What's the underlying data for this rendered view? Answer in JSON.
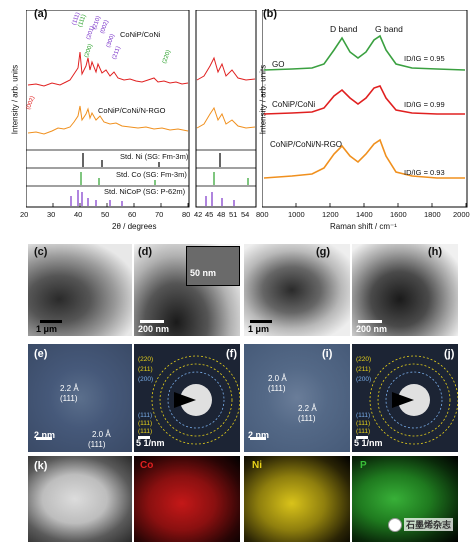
{
  "panel_a": {
    "letter": "(a)",
    "ylabel": "Intensity / arb. units",
    "xlabel": "2θ / degrees",
    "xticks": [
      "20",
      "30",
      "40",
      "50",
      "60",
      "70",
      "80"
    ],
    "xticks_zoom": [
      "42",
      "45",
      "48",
      "51",
      "54"
    ],
    "curve_labels": [
      "CoNiP/CoNi",
      "CoNiP/CoNi/N-RGO"
    ],
    "peak_labels": [
      "(111)",
      "(111)",
      "(201)",
      "(210)",
      "(002)",
      "(300)",
      "(211)",
      "(200)",
      "(220)",
      "(002)"
    ],
    "std_labels": [
      "Std. Ni (SG: Fm-3m)",
      "Std. Co (SG: Fm-3m)",
      "Std. NiCoP (SG: P-62m)"
    ],
    "colors": {
      "red": "#e02020",
      "orange": "#f0901e",
      "green": "#2aa02a",
      "purple": "#7a33c9"
    }
  },
  "panel_b": {
    "letter": "(b)",
    "ylabel": "Intensity / arb. units",
    "xlabel": "Raman shift / cm⁻¹",
    "xticks": [
      "800",
      "1000",
      "1200",
      "1400",
      "1600",
      "1800",
      "2000"
    ],
    "band_labels": [
      "D band",
      "G band"
    ],
    "series": [
      {
        "name": "GO",
        "ratio": "ID/IG = 0.95",
        "color": "#3aa040"
      },
      {
        "name": "CoNiP/CoNi",
        "ratio": "ID/IG = 0.99",
        "color": "#e02020"
      },
      {
        "name": "CoNiP/CoNi/N-RGO",
        "ratio": "ID/IG = 0.93",
        "color": "#f0901e"
      }
    ]
  },
  "tem": {
    "c": {
      "letter": "(c)",
      "scale": "1 μm"
    },
    "d": {
      "letter": "(d)",
      "scale": "200 nm",
      "inset_scale": "50 nm"
    },
    "g": {
      "letter": "(g)",
      "scale": "1 μm"
    },
    "h": {
      "letter": "(h)",
      "scale": "200 nm"
    }
  },
  "hrtem": {
    "e": {
      "letter": "(e)",
      "scale": "2 nm",
      "fringes": [
        "2.2 Å",
        "(111)",
        "2.0 Å",
        "(111)"
      ]
    },
    "f": {
      "letter": "(f)",
      "scale": "5 1/nm",
      "rings": [
        "(220)",
        "(211)",
        "(200)",
        "(111)",
        "(111)",
        "(111)"
      ]
    },
    "i": {
      "letter": "(i)",
      "scale": "2 nm",
      "fringes": [
        "2.0 Å",
        "(111)",
        "2.2 Å",
        "(111)"
      ]
    },
    "j": {
      "letter": "(j)",
      "scale": "5 1/nm",
      "rings": [
        "(220)",
        "(211)",
        "(200)",
        "(111)",
        "(111)",
        "(111)"
      ]
    }
  },
  "maps": {
    "k": {
      "letter": "(k)"
    },
    "co": {
      "label": "Co",
      "color": "#e02020"
    },
    "ni": {
      "label": "Ni",
      "color": "#e8d21a"
    },
    "p": {
      "label": "P",
      "color": "#38c038"
    }
  },
  "watermark": "石墨烯杂志"
}
